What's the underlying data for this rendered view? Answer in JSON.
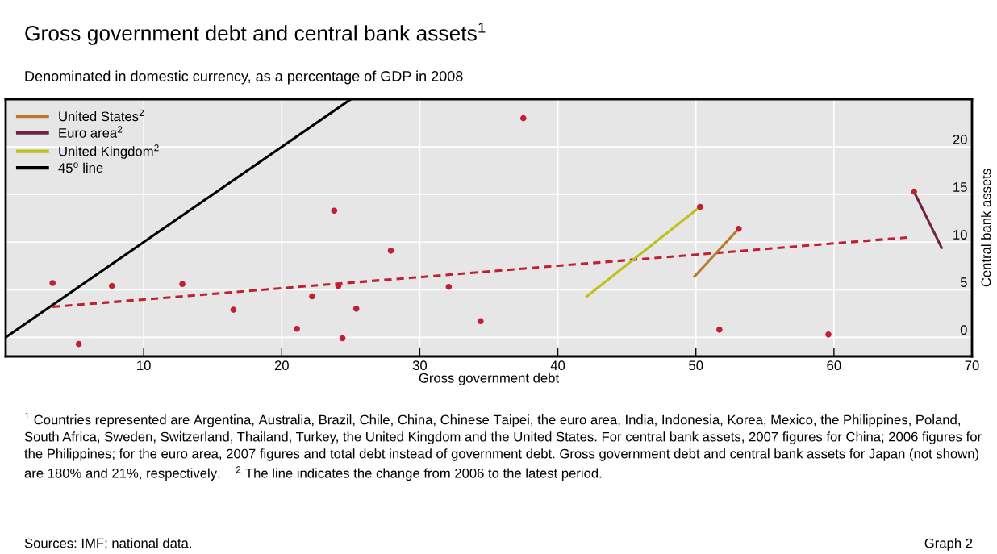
{
  "chart_data": {
    "type": "scatter",
    "title": "Gross government debt and central bank assets$^{1}$",
    "subtitle": "Denominated in domestic currency, as a percentage of GDP in 2008",
    "xlabel": "Gross government debt",
    "ylabel": "Central bank assets",
    "xlim": [
      0,
      70
    ],
    "xticks": [
      10,
      20,
      30,
      40,
      50,
      60,
      70
    ],
    "ylim": [
      -2,
      25
    ],
    "yticks": [
      0,
      5,
      10,
      15,
      20
    ],
    "grid": true,
    "legend": "top left",
    "series": [
      {
        "type": "line",
        "x": [
          3.4,
          65.4
        ],
        "values": [
          3.2,
          10.5
        ],
        "color": "#c0202f",
        "line_style": "dashed",
        "marker": "none"
      },
      {
        "type": "line",
        "name": "United States$^{2}$",
        "x": [
          49.9,
          53.1
        ],
        "values": [
          6.4,
          11.4
        ],
        "color": "#b87a2c",
        "line_style": "solid",
        "marker": "none"
      },
      {
        "type": "line",
        "name": "Euro area$^{2}$",
        "x": [
          65.8,
          67.8
        ],
        "values": [
          15.3,
          9.4
        ],
        "color": "#6e2244",
        "line_style": "solid",
        "marker": "none"
      },
      {
        "type": "line",
        "name": "United Kingdom$^{2}$",
        "x": [
          42.1,
          50.3
        ],
        "values": [
          4.3,
          13.7
        ],
        "color": "#bcc21a",
        "line_style": "solid",
        "marker": "none"
      },
      {
        "type": "line",
        "name": "45$^{o}$ line",
        "x": [
          0,
          25
        ],
        "values": [
          0,
          25
        ],
        "color": "#000000",
        "line_style": "solid",
        "marker": "none"
      },
      {
        "color": "#c0202f",
        "marker": "circle",
        "x": [
          3.4,
          5.3,
          7.7,
          12.8,
          16.5,
          21.1,
          22.2,
          23.8,
          24.1,
          24.4,
          25.4,
          27.9,
          32.1,
          34.4,
          37.5,
          50.3,
          53.1,
          51.7,
          59.6,
          65.8
        ],
        "values": [
          5.7,
          -0.7,
          5.4,
          5.6,
          2.9,
          0.9,
          4.3,
          13.3,
          5.4,
          -0.1,
          3.0,
          9.1,
          5.3,
          1.7,
          23.0,
          13.7,
          11.4,
          0.8,
          0.3,
          15.3
        ]
      }
    ],
    "annotations": [
      "$^{1}$ Countries represented are Argentina, Australia, Brazil, Chile, China, Chinese Taipei, the euro area, India, Indonesia, Korea, Mexico, the Philippines, Poland, South Africa, Sweden, Switzerland, Thailand, Turkey, the United Kingdom and the United States. For central bank assets, 2007 figures for China; 2006 figures for the Philippines; for the euro area, 2007 figures and total debt instead of government debt. Gross government debt and central bank assets for Japan (not shown) are 180% and 21%, respectively.    $^{2}$ The line indicates the change from 2006 to the latest period.",
      "Sources: IMF; national data.",
      "Graph 2"
    ]
  }
}
